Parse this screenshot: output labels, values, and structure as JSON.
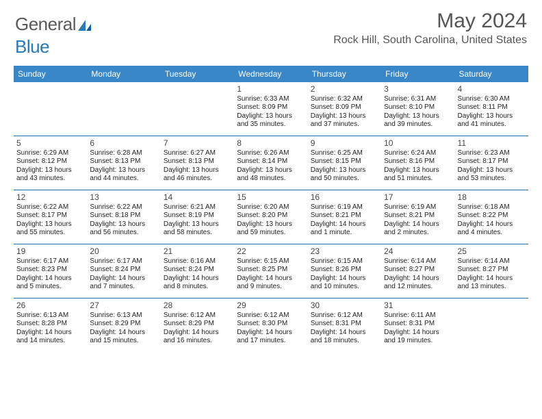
{
  "logo": {
    "text_gray": "General",
    "text_blue": "Blue"
  },
  "title": "May 2024",
  "location": "Rock Hill, South Carolina, United States",
  "colors": {
    "header_bg": "#3a87c8",
    "header_text": "#ffffff",
    "divider": "#2a6ca8",
    "title_color": "#555555",
    "body_text": "#222222"
  },
  "day_names": [
    "Sunday",
    "Monday",
    "Tuesday",
    "Wednesday",
    "Thursday",
    "Friday",
    "Saturday"
  ],
  "weeks": [
    [
      {
        "date": "",
        "lines": []
      },
      {
        "date": "",
        "lines": []
      },
      {
        "date": "",
        "lines": []
      },
      {
        "date": "1",
        "lines": [
          "Sunrise: 6:33 AM",
          "Sunset: 8:09 PM",
          "Daylight: 13 hours",
          "and 35 minutes."
        ]
      },
      {
        "date": "2",
        "lines": [
          "Sunrise: 6:32 AM",
          "Sunset: 8:09 PM",
          "Daylight: 13 hours",
          "and 37 minutes."
        ]
      },
      {
        "date": "3",
        "lines": [
          "Sunrise: 6:31 AM",
          "Sunset: 8:10 PM",
          "Daylight: 13 hours",
          "and 39 minutes."
        ]
      },
      {
        "date": "4",
        "lines": [
          "Sunrise: 6:30 AM",
          "Sunset: 8:11 PM",
          "Daylight: 13 hours",
          "and 41 minutes."
        ]
      }
    ],
    [
      {
        "date": "5",
        "lines": [
          "Sunrise: 6:29 AM",
          "Sunset: 8:12 PM",
          "Daylight: 13 hours",
          "and 43 minutes."
        ]
      },
      {
        "date": "6",
        "lines": [
          "Sunrise: 6:28 AM",
          "Sunset: 8:13 PM",
          "Daylight: 13 hours",
          "and 44 minutes."
        ]
      },
      {
        "date": "7",
        "lines": [
          "Sunrise: 6:27 AM",
          "Sunset: 8:13 PM",
          "Daylight: 13 hours",
          "and 46 minutes."
        ]
      },
      {
        "date": "8",
        "lines": [
          "Sunrise: 6:26 AM",
          "Sunset: 8:14 PM",
          "Daylight: 13 hours",
          "and 48 minutes."
        ]
      },
      {
        "date": "9",
        "lines": [
          "Sunrise: 6:25 AM",
          "Sunset: 8:15 PM",
          "Daylight: 13 hours",
          "and 50 minutes."
        ]
      },
      {
        "date": "10",
        "lines": [
          "Sunrise: 6:24 AM",
          "Sunset: 8:16 PM",
          "Daylight: 13 hours",
          "and 51 minutes."
        ]
      },
      {
        "date": "11",
        "lines": [
          "Sunrise: 6:23 AM",
          "Sunset: 8:17 PM",
          "Daylight: 13 hours",
          "and 53 minutes."
        ]
      }
    ],
    [
      {
        "date": "12",
        "lines": [
          "Sunrise: 6:22 AM",
          "Sunset: 8:17 PM",
          "Daylight: 13 hours",
          "and 55 minutes."
        ]
      },
      {
        "date": "13",
        "lines": [
          "Sunrise: 6:22 AM",
          "Sunset: 8:18 PM",
          "Daylight: 13 hours",
          "and 56 minutes."
        ]
      },
      {
        "date": "14",
        "lines": [
          "Sunrise: 6:21 AM",
          "Sunset: 8:19 PM",
          "Daylight: 13 hours",
          "and 58 minutes."
        ]
      },
      {
        "date": "15",
        "lines": [
          "Sunrise: 6:20 AM",
          "Sunset: 8:20 PM",
          "Daylight: 13 hours",
          "and 59 minutes."
        ]
      },
      {
        "date": "16",
        "lines": [
          "Sunrise: 6:19 AM",
          "Sunset: 8:21 PM",
          "Daylight: 14 hours",
          "and 1 minute."
        ]
      },
      {
        "date": "17",
        "lines": [
          "Sunrise: 6:19 AM",
          "Sunset: 8:21 PM",
          "Daylight: 14 hours",
          "and 2 minutes."
        ]
      },
      {
        "date": "18",
        "lines": [
          "Sunrise: 6:18 AM",
          "Sunset: 8:22 PM",
          "Daylight: 14 hours",
          "and 4 minutes."
        ]
      }
    ],
    [
      {
        "date": "19",
        "lines": [
          "Sunrise: 6:17 AM",
          "Sunset: 8:23 PM",
          "Daylight: 14 hours",
          "and 5 minutes."
        ]
      },
      {
        "date": "20",
        "lines": [
          "Sunrise: 6:17 AM",
          "Sunset: 8:24 PM",
          "Daylight: 14 hours",
          "and 7 minutes."
        ]
      },
      {
        "date": "21",
        "lines": [
          "Sunrise: 6:16 AM",
          "Sunset: 8:24 PM",
          "Daylight: 14 hours",
          "and 8 minutes."
        ]
      },
      {
        "date": "22",
        "lines": [
          "Sunrise: 6:15 AM",
          "Sunset: 8:25 PM",
          "Daylight: 14 hours",
          "and 9 minutes."
        ]
      },
      {
        "date": "23",
        "lines": [
          "Sunrise: 6:15 AM",
          "Sunset: 8:26 PM",
          "Daylight: 14 hours",
          "and 10 minutes."
        ]
      },
      {
        "date": "24",
        "lines": [
          "Sunrise: 6:14 AM",
          "Sunset: 8:27 PM",
          "Daylight: 14 hours",
          "and 12 minutes."
        ]
      },
      {
        "date": "25",
        "lines": [
          "Sunrise: 6:14 AM",
          "Sunset: 8:27 PM",
          "Daylight: 14 hours",
          "and 13 minutes."
        ]
      }
    ],
    [
      {
        "date": "26",
        "lines": [
          "Sunrise: 6:13 AM",
          "Sunset: 8:28 PM",
          "Daylight: 14 hours",
          "and 14 minutes."
        ]
      },
      {
        "date": "27",
        "lines": [
          "Sunrise: 6:13 AM",
          "Sunset: 8:29 PM",
          "Daylight: 14 hours",
          "and 15 minutes."
        ]
      },
      {
        "date": "28",
        "lines": [
          "Sunrise: 6:12 AM",
          "Sunset: 8:29 PM",
          "Daylight: 14 hours",
          "and 16 minutes."
        ]
      },
      {
        "date": "29",
        "lines": [
          "Sunrise: 6:12 AM",
          "Sunset: 8:30 PM",
          "Daylight: 14 hours",
          "and 17 minutes."
        ]
      },
      {
        "date": "30",
        "lines": [
          "Sunrise: 6:12 AM",
          "Sunset: 8:31 PM",
          "Daylight: 14 hours",
          "and 18 minutes."
        ]
      },
      {
        "date": "31",
        "lines": [
          "Sunrise: 6:11 AM",
          "Sunset: 8:31 PM",
          "Daylight: 14 hours",
          "and 19 minutes."
        ]
      },
      {
        "date": "",
        "lines": []
      }
    ]
  ]
}
